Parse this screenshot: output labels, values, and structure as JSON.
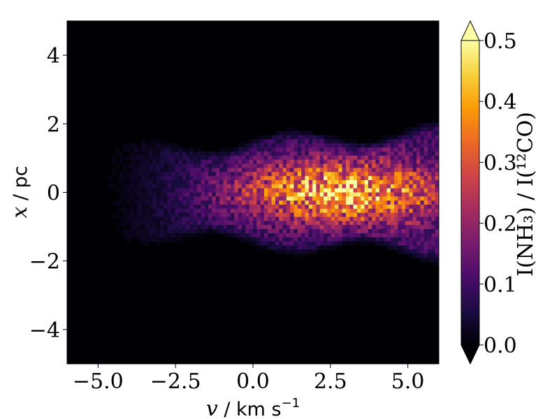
{
  "chart_data": {
    "type": "heatmap",
    "xlabel_var": "v",
    "xlabel_unit": " / km s",
    "xlabel_exp": "−1",
    "ylabel_var": "x",
    "ylabel_unit": " / pc",
    "colorbar_label": "I(NH₃) / I(¹²CO)",
    "xlim": [
      -6,
      6
    ],
    "ylim": [
      -5,
      5
    ],
    "xticks": [
      -5.0,
      -2.5,
      0.0,
      2.5,
      5.0
    ],
    "xtick_labels": [
      "−5.0",
      "−2.5",
      "0.0",
      "2.5",
      "5.0"
    ],
    "yticks": [
      -4,
      -2,
      0,
      2,
      4
    ],
    "ytick_labels": [
      "−4",
      "−2",
      "0",
      "2",
      "4"
    ],
    "colorbar": {
      "range": [
        0.0,
        0.5
      ],
      "ticks": [
        0.0,
        0.1,
        0.2,
        0.3,
        0.4,
        0.5
      ],
      "tick_labels": [
        "0.0",
        "0.1",
        "0.2",
        "0.3",
        "0.4",
        "0.5"
      ],
      "extend": "both",
      "colormap": "inferno"
    },
    "grid": false,
    "features": [
      {
        "name": "emission-plume",
        "v_range": [
          -4.0,
          6.0
        ],
        "x_range": [
          -1.6,
          1.6
        ],
        "peak_v": 2.8,
        "peak_x": 0.0,
        "peak_ratio": 0.45
      }
    ]
  },
  "colors": {
    "background_field": "#000004",
    "cmap_stops": [
      "#000004",
      "#1b0c41",
      "#4a0c6b",
      "#781c6d",
      "#a52c60",
      "#cf4446",
      "#ed6925",
      "#fb9b06",
      "#f7d13d",
      "#fcffa4"
    ]
  }
}
